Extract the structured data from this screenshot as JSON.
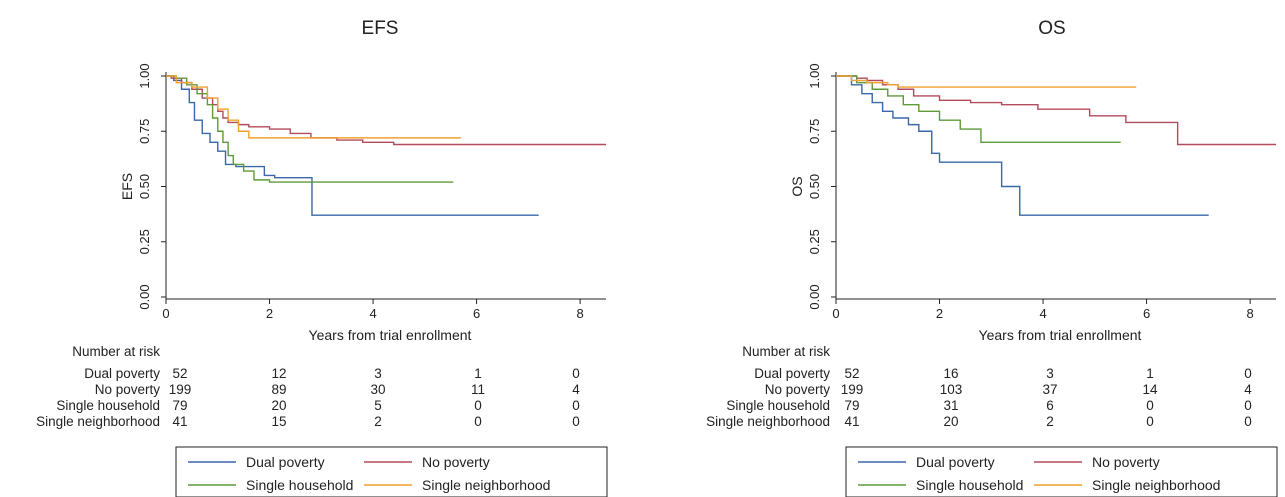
{
  "chart_data": [
    {
      "type": "line",
      "title": "EFS",
      "xlabel": "Years from trial enrollment",
      "ylabel": "EFS",
      "xlim": [
        0,
        8.5
      ],
      "ylim": [
        0,
        1
      ],
      "x_ticks": [
        "0",
        "2",
        "4",
        "6",
        "8"
      ],
      "y_ticks": [
        "0.00",
        "0.25",
        "0.50",
        "0.75",
        "1.00"
      ],
      "series": [
        {
          "name": "Dual poverty",
          "color": "#3a67a8",
          "x": [
            0,
            0.15,
            0.3,
            0.45,
            0.55,
            0.7,
            0.85,
            1.0,
            1.15,
            1.35,
            1.6,
            1.9,
            2.1,
            2.8,
            2.82,
            7.2
          ],
          "y": [
            1.0,
            0.98,
            0.94,
            0.88,
            0.8,
            0.74,
            0.7,
            0.66,
            0.6,
            0.59,
            0.59,
            0.55,
            0.54,
            0.54,
            0.37,
            0.37
          ]
        },
        {
          "name": "No poverty",
          "color": "#b24a5c",
          "x": [
            0,
            0.1,
            0.3,
            0.5,
            0.7,
            0.9,
            1.0,
            1.1,
            1.2,
            1.4,
            1.6,
            2.0,
            2.4,
            2.8,
            3.3,
            3.8,
            4.4,
            8.5
          ],
          "y": [
            1.0,
            0.99,
            0.97,
            0.94,
            0.9,
            0.87,
            0.84,
            0.81,
            0.79,
            0.78,
            0.77,
            0.76,
            0.74,
            0.72,
            0.71,
            0.7,
            0.69,
            0.69
          ]
        },
        {
          "name": "Single household",
          "color": "#5e9a3a",
          "x": [
            0,
            0.2,
            0.4,
            0.6,
            0.8,
            0.9,
            1.0,
            1.1,
            1.2,
            1.3,
            1.5,
            1.7,
            2.0,
            5.55
          ],
          "y": [
            1.0,
            0.99,
            0.96,
            0.92,
            0.87,
            0.81,
            0.75,
            0.7,
            0.64,
            0.6,
            0.57,
            0.53,
            0.52,
            0.52
          ]
        },
        {
          "name": "Single neighborhood",
          "color": "#f0a030",
          "x": [
            0,
            0.2,
            0.5,
            0.8,
            1.0,
            1.2,
            1.4,
            1.6,
            5.7
          ],
          "y": [
            1.0,
            0.97,
            0.95,
            0.9,
            0.85,
            0.8,
            0.75,
            0.72,
            0.72
          ]
        }
      ],
      "risk_table": {
        "header": "Number at risk",
        "rows": [
          {
            "label": "Dual poverty",
            "values": [
              "52",
              "12",
              "3",
              "1",
              "0"
            ]
          },
          {
            "label": "No poverty",
            "values": [
              "199",
              "89",
              "30",
              "11",
              "4"
            ]
          },
          {
            "label": "Single household",
            "values": [
              "79",
              "20",
              "5",
              "0",
              "0"
            ]
          },
          {
            "label": "Single neighborhood",
            "values": [
              "41",
              "15",
              "2",
              "0",
              "0"
            ]
          }
        ]
      },
      "legend": [
        "Dual poverty",
        "No poverty",
        "Single household",
        "Single neighborhood"
      ],
      "legend_placement": "bottom"
    },
    {
      "type": "line",
      "title": "OS",
      "xlabel": "Years from trial enrollment",
      "ylabel": "OS",
      "xlim": [
        0,
        8.5
      ],
      "ylim": [
        0,
        1
      ],
      "x_ticks": [
        "0",
        "2",
        "4",
        "6",
        "8"
      ],
      "y_ticks": [
        "0.00",
        "0.25",
        "0.50",
        "0.75",
        "1.00"
      ],
      "series": [
        {
          "name": "Dual poverty",
          "color": "#3a67a8",
          "x": [
            0,
            0.3,
            0.5,
            0.7,
            0.9,
            1.1,
            1.4,
            1.6,
            1.85,
            2.0,
            3.0,
            3.2,
            3.55,
            7.2
          ],
          "y": [
            1.0,
            0.96,
            0.92,
            0.88,
            0.84,
            0.81,
            0.78,
            0.75,
            0.65,
            0.61,
            0.61,
            0.5,
            0.37,
            0.37
          ]
        },
        {
          "name": "No poverty",
          "color": "#b24a5c",
          "x": [
            0,
            0.4,
            0.6,
            0.9,
            1.2,
            1.5,
            2.0,
            2.6,
            3.2,
            3.9,
            4.9,
            5.6,
            6.6,
            8.5
          ],
          "y": [
            1.0,
            0.99,
            0.98,
            0.96,
            0.94,
            0.91,
            0.89,
            0.88,
            0.87,
            0.85,
            0.82,
            0.79,
            0.69,
            0.69
          ]
        },
        {
          "name": "Single household",
          "color": "#5e9a3a",
          "x": [
            0,
            0.4,
            0.7,
            1.0,
            1.3,
            1.6,
            2.0,
            2.4,
            2.8,
            5.5
          ],
          "y": [
            1.0,
            0.97,
            0.94,
            0.91,
            0.87,
            0.84,
            0.8,
            0.76,
            0.7,
            0.7
          ]
        },
        {
          "name": "Single neighborhood",
          "color": "#f0a030",
          "x": [
            0,
            0.3,
            0.6,
            1.0,
            1.2,
            5.8
          ],
          "y": [
            1.0,
            0.98,
            0.97,
            0.96,
            0.95,
            0.95
          ]
        }
      ],
      "risk_table": {
        "header": "Number at risk",
        "rows": [
          {
            "label": "Dual poverty",
            "values": [
              "52",
              "16",
              "3",
              "1",
              "0"
            ]
          },
          {
            "label": "No poverty",
            "values": [
              "199",
              "103",
              "37",
              "14",
              "4"
            ]
          },
          {
            "label": "Single household",
            "values": [
              "79",
              "31",
              "6",
              "0",
              "0"
            ]
          },
          {
            "label": "Single neighborhood",
            "values": [
              "41",
              "20",
              "2",
              "0",
              "0"
            ]
          }
        ]
      },
      "legend": [
        "Dual poverty",
        "No poverty",
        "Single household",
        "Single neighborhood"
      ],
      "legend_placement": "bottom"
    }
  ]
}
